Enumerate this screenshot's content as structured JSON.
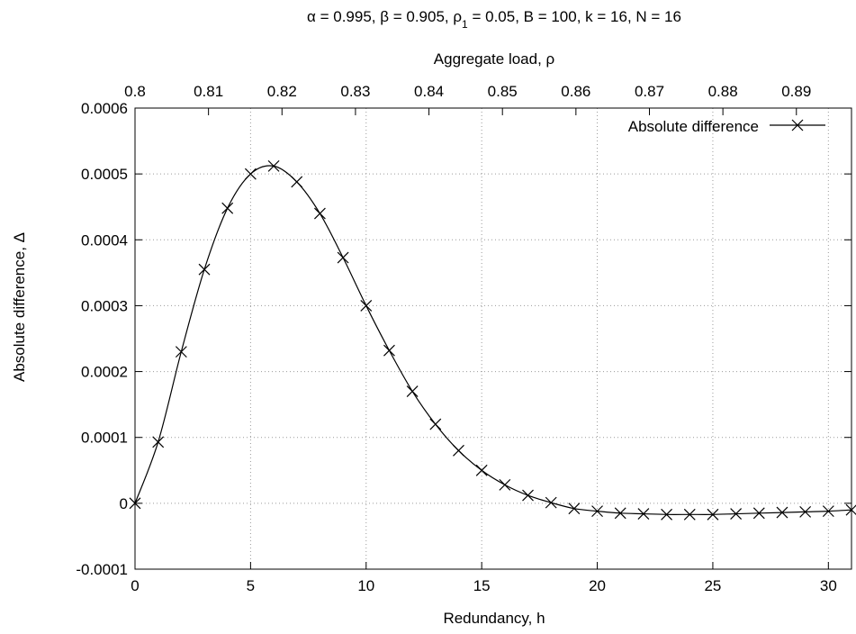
{
  "chart_data": {
    "type": "line",
    "title": "α = 0.995, β = 0.905, ρ1 = 0.05, B = 100, k = 16, N = 16",
    "title_parts": {
      "pre": "α = 0.995, β = 0.905, ρ",
      "sub": "1",
      "post": " = 0.05, B = 100, k = 16, N = 16"
    },
    "xlabel": "Redundancy, h",
    "ylabel": "Absolute difference, Δ",
    "x2label": "Aggregate load, ρ",
    "xlim": [
      0,
      31
    ],
    "ylim": [
      -0.0001,
      0.0006
    ],
    "x2lim": [
      0.8,
      0.8975
    ],
    "x_ticks": [
      0,
      5,
      10,
      15,
      20,
      25,
      30
    ],
    "x_tick_labels": [
      "0",
      "5",
      "10",
      "15",
      "20",
      "25",
      "30"
    ],
    "y_ticks": [
      -0.0001,
      0,
      0.0001,
      0.0002,
      0.0003,
      0.0004,
      0.0005,
      0.0006
    ],
    "y_tick_labels": [
      "-0.0001",
      "0",
      "0.0001",
      "0.0002",
      "0.0003",
      "0.0004",
      "0.0005",
      "0.0006"
    ],
    "x2_ticks": [
      0.8,
      0.81,
      0.82,
      0.83,
      0.84,
      0.85,
      0.86,
      0.87,
      0.88,
      0.89
    ],
    "x2_tick_labels": [
      "0.8",
      "0.81",
      "0.82",
      "0.83",
      "0.84",
      "0.85",
      "0.86",
      "0.87",
      "0.88",
      "0.89"
    ],
    "grid": true,
    "legend_position": "top-right",
    "series": [
      {
        "name": "Absolute difference",
        "marker": "x",
        "x": [
          0,
          1,
          2,
          3,
          4,
          5,
          6,
          7,
          8,
          9,
          10,
          11,
          12,
          13,
          14,
          15,
          16,
          17,
          18,
          19,
          20,
          21,
          22,
          23,
          24,
          25,
          26,
          27,
          28,
          29,
          30,
          31
        ],
        "y": [
          0,
          9.3e-05,
          0.00023,
          0.000355,
          0.000448,
          0.0005,
          0.000512,
          0.000488,
          0.00044,
          0.000373,
          0.0003,
          0.000232,
          0.00017,
          0.00012,
          8e-05,
          5e-05,
          2.8e-05,
          1.2e-05,
          1e-06,
          -8e-06,
          -1.2e-05,
          -1.5e-05,
          -1.6e-05,
          -1.7e-05,
          -1.7e-05,
          -1.7e-05,
          -1.6e-05,
          -1.5e-05,
          -1.4e-05,
          -1.3e-05,
          -1.2e-05,
          -1e-05
        ]
      }
    ]
  }
}
